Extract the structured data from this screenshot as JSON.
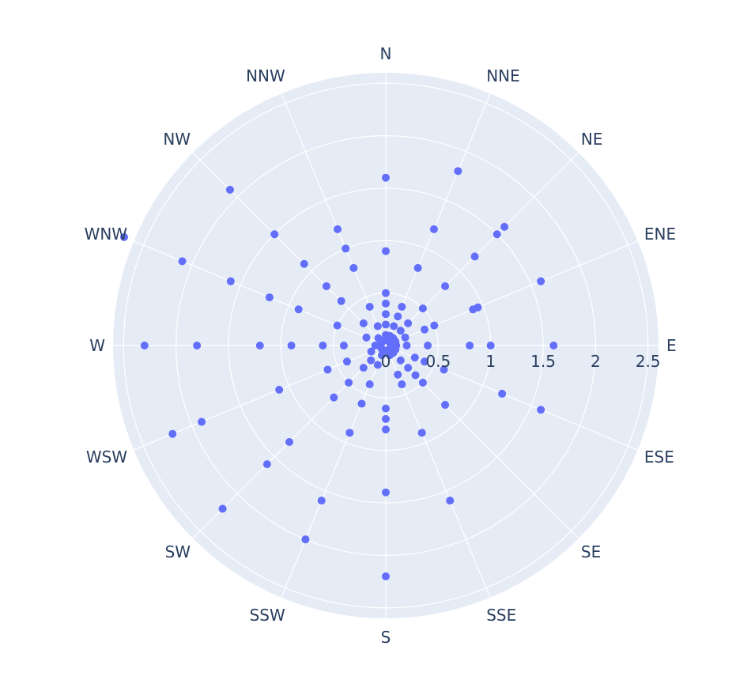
{
  "chart_data": {
    "type": "scatter",
    "subtype": "polar",
    "angular_axis": {
      "direction": "clockwise",
      "rotation": "north-up",
      "categories": [
        "N",
        "NNE",
        "NE",
        "ENE",
        "E",
        "ESE",
        "SE",
        "SSE",
        "S",
        "SSW",
        "SW",
        "WSW",
        "W",
        "WNW",
        "NW",
        "NNW"
      ]
    },
    "radial_axis": {
      "range": [
        0,
        2.6
      ],
      "ticks": [
        0,
        0.5,
        1,
        1.5,
        2,
        2.5
      ],
      "tick_labels": [
        "0",
        "0.5",
        "1",
        "1.5",
        "2",
        "2.5"
      ]
    },
    "grid": true,
    "legend": false,
    "colors": {
      "marker": "#636efa",
      "polar_bg": "#e5ecf6",
      "grid": "#ffffff",
      "text": "#2a3f5f"
    },
    "series": [
      {
        "points": [
          {
            "theta": "N",
            "r": [
              0.05,
              0.1,
              0.2,
              0.3,
              0.4,
              0.5,
              0.9,
              1.6
            ]
          },
          {
            "theta": "NNE",
            "r": [
              0.05,
              0.1,
              0.2,
              0.3,
              0.4,
              0.8,
              1.2,
              1.8
            ]
          },
          {
            "theta": "NE",
            "r": [
              0.05,
              0.1,
              0.2,
              0.3,
              0.5,
              0.8,
              1.2,
              1.5,
              1.6
            ]
          },
          {
            "theta": "ENE",
            "r": [
              0.05,
              0.1,
              0.2,
              0.4,
              0.5,
              0.9,
              0.95,
              1.6
            ]
          },
          {
            "theta": "E",
            "r": [
              0.05,
              0.1,
              0.2,
              0.4,
              0.8,
              1.0,
              1.6
            ]
          },
          {
            "theta": "ESE",
            "r": [
              0.05,
              0.1,
              0.3,
              0.4,
              0.6,
              1.2,
              1.6
            ]
          },
          {
            "theta": "SE",
            "r": [
              0.05,
              0.1,
              0.2,
              0.3,
              0.4,
              0.5,
              0.8
            ]
          },
          {
            "theta": "SSE",
            "r": [
              0.05,
              0.1,
              0.3,
              0.4,
              0.9,
              1.6
            ]
          },
          {
            "theta": "S",
            "r": [
              0.05,
              0.6,
              0.7,
              0.8,
              1.4,
              2.2
            ]
          },
          {
            "theta": "SSW",
            "r": [
              0.05,
              0.1,
              0.2,
              0.4,
              0.6,
              0.9,
              1.6,
              2.0
            ]
          },
          {
            "theta": "SW",
            "r": [
              0.05,
              0.2,
              0.3,
              0.5,
              0.7,
              1.3,
              1.6,
              2.2
            ]
          },
          {
            "theta": "WSW",
            "r": [
              0.05,
              0.15,
              0.4,
              0.6,
              1.1,
              1.9,
              2.2
            ]
          },
          {
            "theta": "W",
            "r": [
              0.05,
              0.1,
              0.4,
              0.6,
              0.9,
              1.2,
              1.8,
              2.3
            ]
          },
          {
            "theta": "WNW",
            "r": [
              0.05,
              0.2,
              0.5,
              0.9,
              1.2,
              1.6,
              2.1,
              2.7
            ]
          },
          {
            "theta": "NW",
            "r": [
              0.05,
              0.1,
              0.3,
              0.6,
              0.8,
              1.1,
              1.5,
              2.1
            ]
          },
          {
            "theta": "NNW",
            "r": [
              0.05,
              0.2,
              0.4,
              0.8,
              1.0,
              1.2
            ]
          }
        ]
      }
    ]
  }
}
